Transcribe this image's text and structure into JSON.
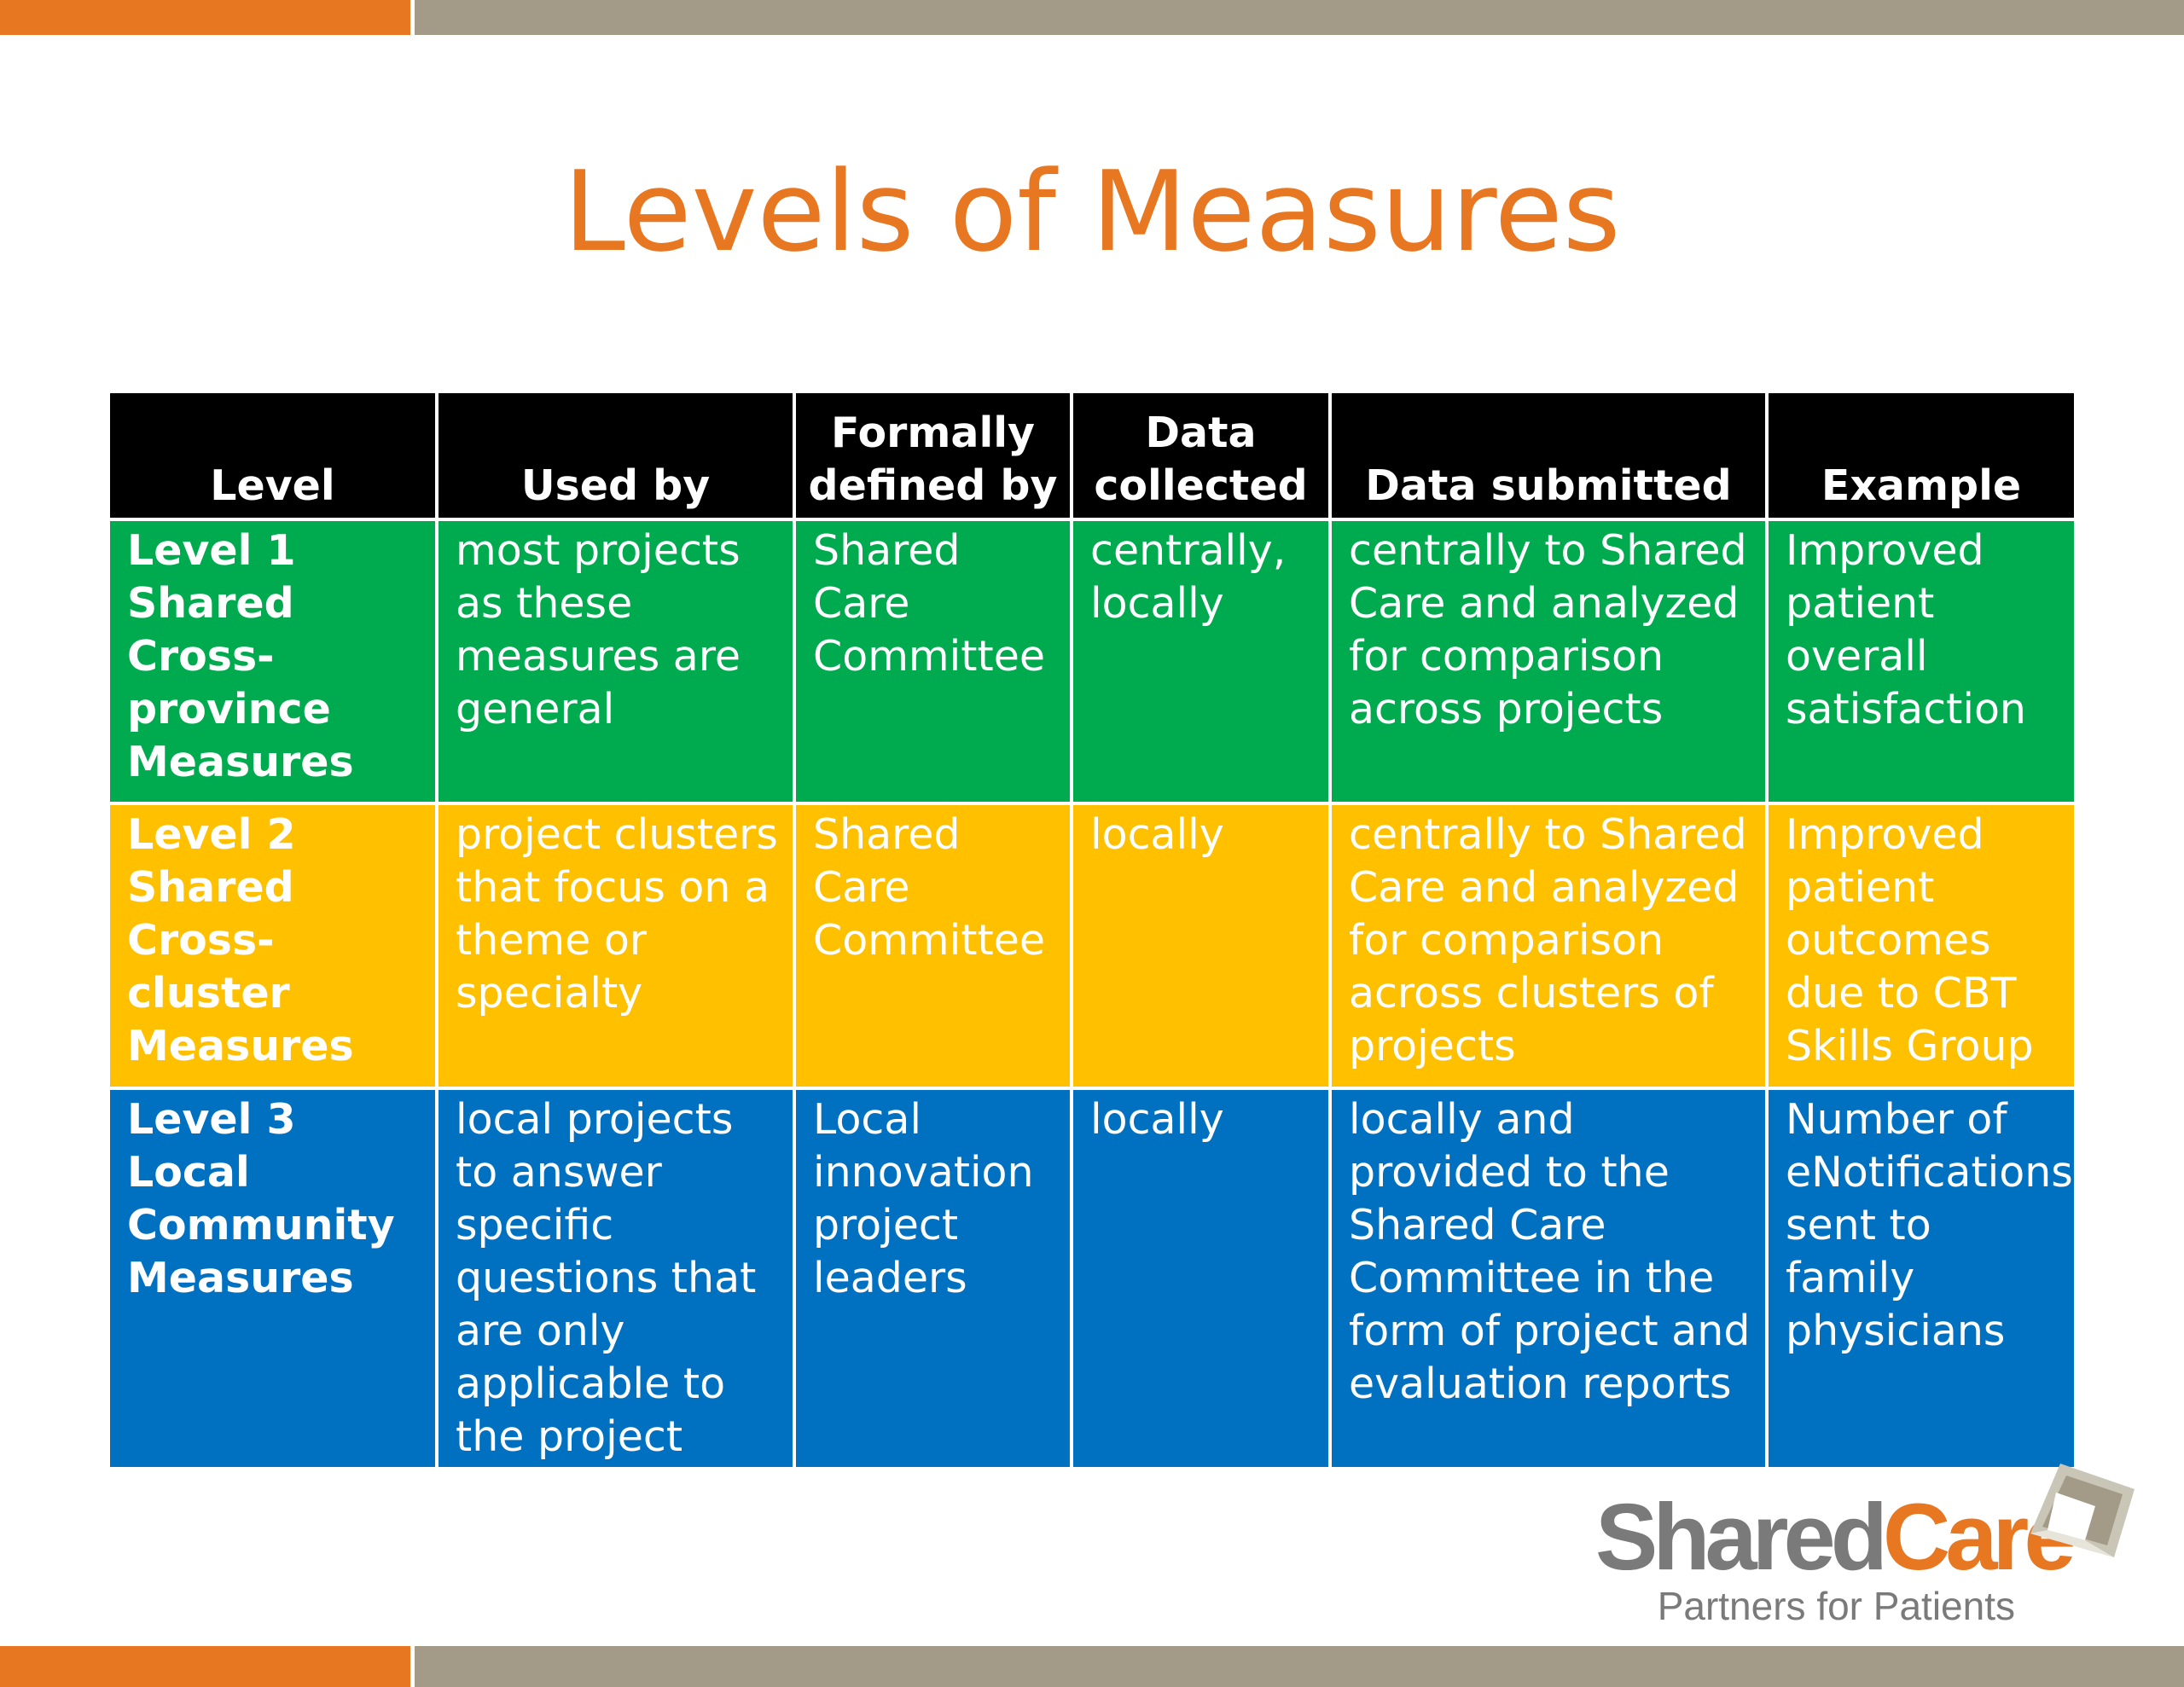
{
  "slide": {
    "title": "Levels of Measures"
  },
  "table": {
    "headers": [
      "Level",
      "Used by",
      "Formally defined by",
      "Data collected",
      "Data submitted",
      "Example"
    ],
    "rows": [
      {
        "color": "#00aa4f",
        "cells": [
          "Level 1 Shared Cross-province Measures",
          "most projects as these measures are general",
          "Shared Care Committee",
          "centrally, locally",
          "centrally to Shared Care and analyzed for comparison across projects",
          "Improved patient overall satisfaction"
        ]
      },
      {
        "color": "#ffc000",
        "cells": [
          "Level 2 Shared Cross-cluster Measures",
          "project clusters that focus on a theme or specialty",
          "Shared Care Committee",
          "locally",
          "centrally to Shared Care and analyzed for comparison across clusters of projects",
          "Improved patient outcomes due to CBT Skills Group"
        ]
      },
      {
        "color": "#0070c0",
        "cells": [
          "Level 3 Local Community Measures",
          "local projects to answer specific questions that are only applicable to the project",
          "Local innovation project leaders",
          "locally",
          "locally and provided to the Shared Care Committee in the form of project and evaluation reports",
          "Number of eNotifications sent to family physicians"
        ]
      }
    ]
  },
  "logo": {
    "word_part1": "Shared",
    "word_part2": "Care",
    "tagline": "Partners for Patients",
    "icon": "shared-care-diamond-icon"
  },
  "colors": {
    "accent_orange": "#e87722",
    "bar_gray": "#a39b87",
    "header_black": "#000000",
    "level1_green": "#00aa4f",
    "level2_yellow": "#ffc000",
    "level3_blue": "#0070c0"
  }
}
